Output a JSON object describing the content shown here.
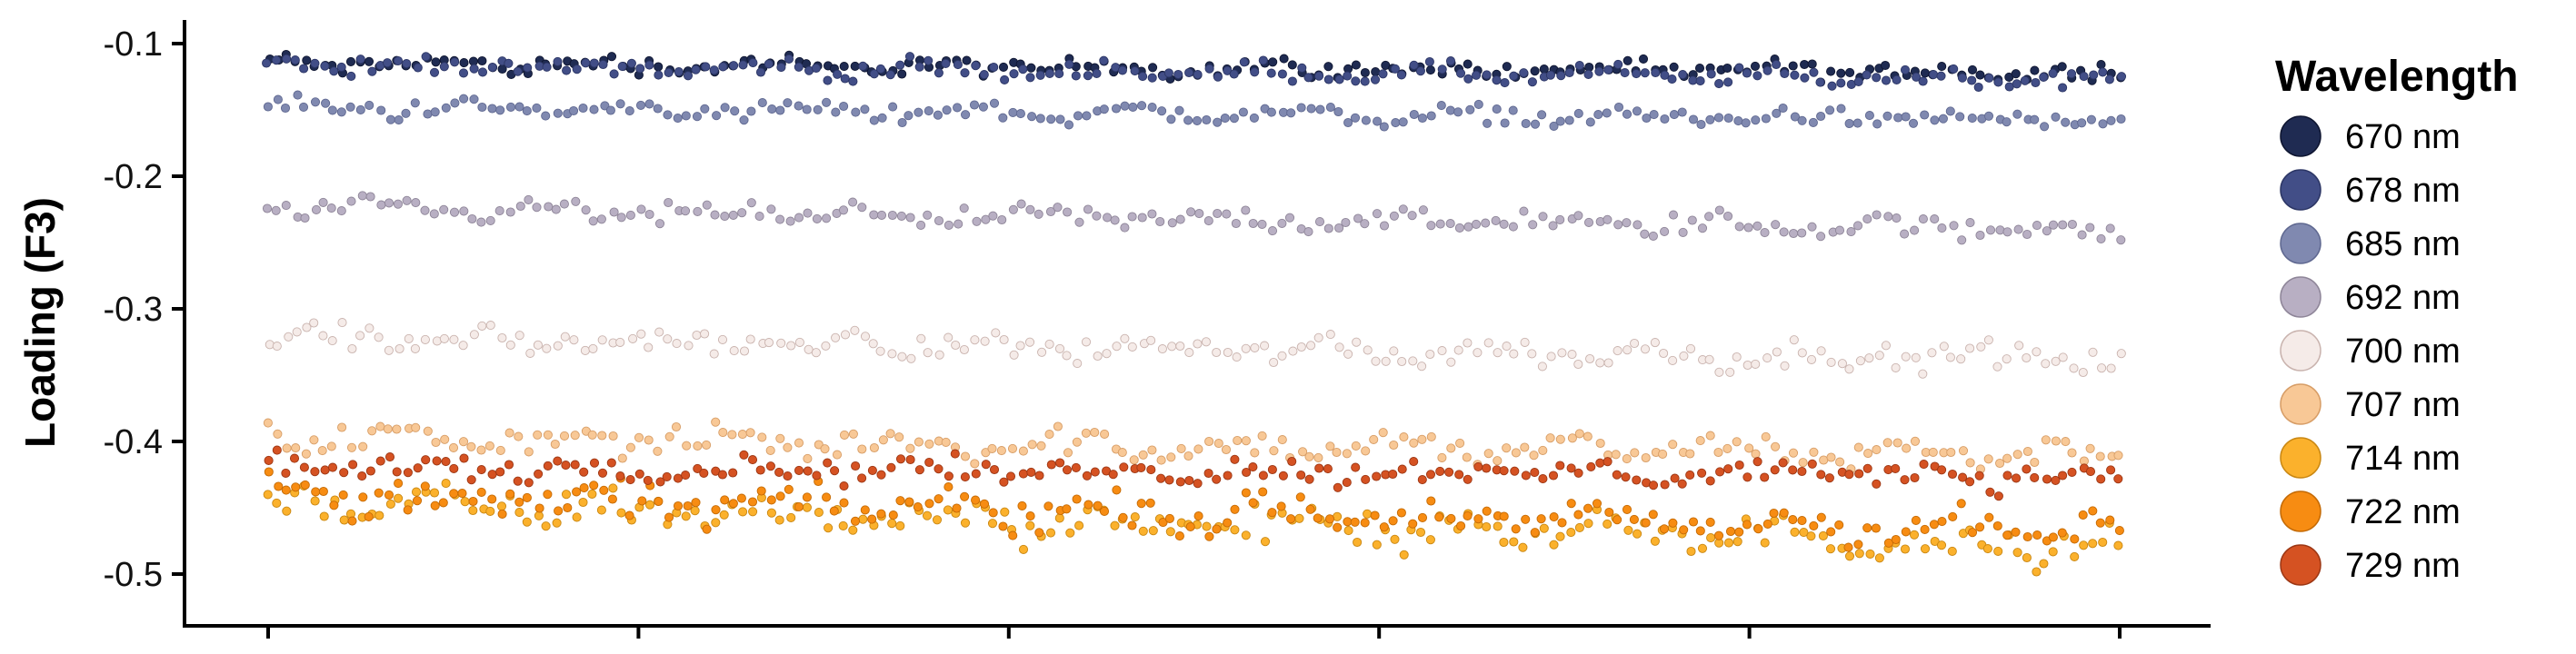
{
  "chart_data": {
    "type": "scatter",
    "title": "",
    "xlabel": "",
    "ylabel": "Loading (F3)",
    "ylim": [
      -0.54,
      -0.085
    ],
    "y_ticks": [
      -0.1,
      -0.2,
      -0.3,
      -0.4,
      -0.5
    ],
    "y_tick_labels": [
      "-0.1",
      "-0.2",
      "-0.3",
      "-0.4",
      "-0.5"
    ],
    "x_ticks_count": 6,
    "grid": false,
    "legend": {
      "title": "Wavelength",
      "placement": "right"
    },
    "points_per_series": 200,
    "series": [
      {
        "name": "670 nm",
        "color": "#1f2b52",
        "point_outline": "#0e1530",
        "y_start": -0.115,
        "y_end": -0.122,
        "y_spread": 0.008
      },
      {
        "name": "678 nm",
        "color": "#424e87",
        "point_outline": "#2c3665",
        "y_start": -0.116,
        "y_end": -0.127,
        "y_spread": 0.008
      },
      {
        "name": "685 nm",
        "color": "#8089b0",
        "point_outline": "#5f6890",
        "y_start": -0.148,
        "y_end": -0.158,
        "y_spread": 0.008
      },
      {
        "name": "692 nm",
        "color": "#b8afc3",
        "point_outline": "#8e8598",
        "y_start": -0.225,
        "y_end": -0.24,
        "y_spread": 0.01
      },
      {
        "name": "700 nm",
        "color": "#f5ebe8",
        "point_outline": "#c9b3ae",
        "y_start": -0.322,
        "y_end": -0.338,
        "y_spread": 0.012
      },
      {
        "name": "707 nm",
        "color": "#f8c896",
        "point_outline": "#d79d66",
        "y_start": -0.397,
        "y_end": -0.41,
        "y_spread": 0.013
      },
      {
        "name": "714 nm",
        "color": "#fbb12c",
        "point_outline": "#c98712",
        "y_start": -0.446,
        "y_end": -0.478,
        "y_spread": 0.017
      },
      {
        "name": "722 nm",
        "color": "#f78c12",
        "point_outline": "#c46a05",
        "y_start": -0.44,
        "y_end": -0.468,
        "y_spread": 0.016
      },
      {
        "name": "729 nm",
        "color": "#d55222",
        "point_outline": "#9c3714",
        "y_start": -0.419,
        "y_end": -0.426,
        "y_spread": 0.011
      }
    ]
  }
}
